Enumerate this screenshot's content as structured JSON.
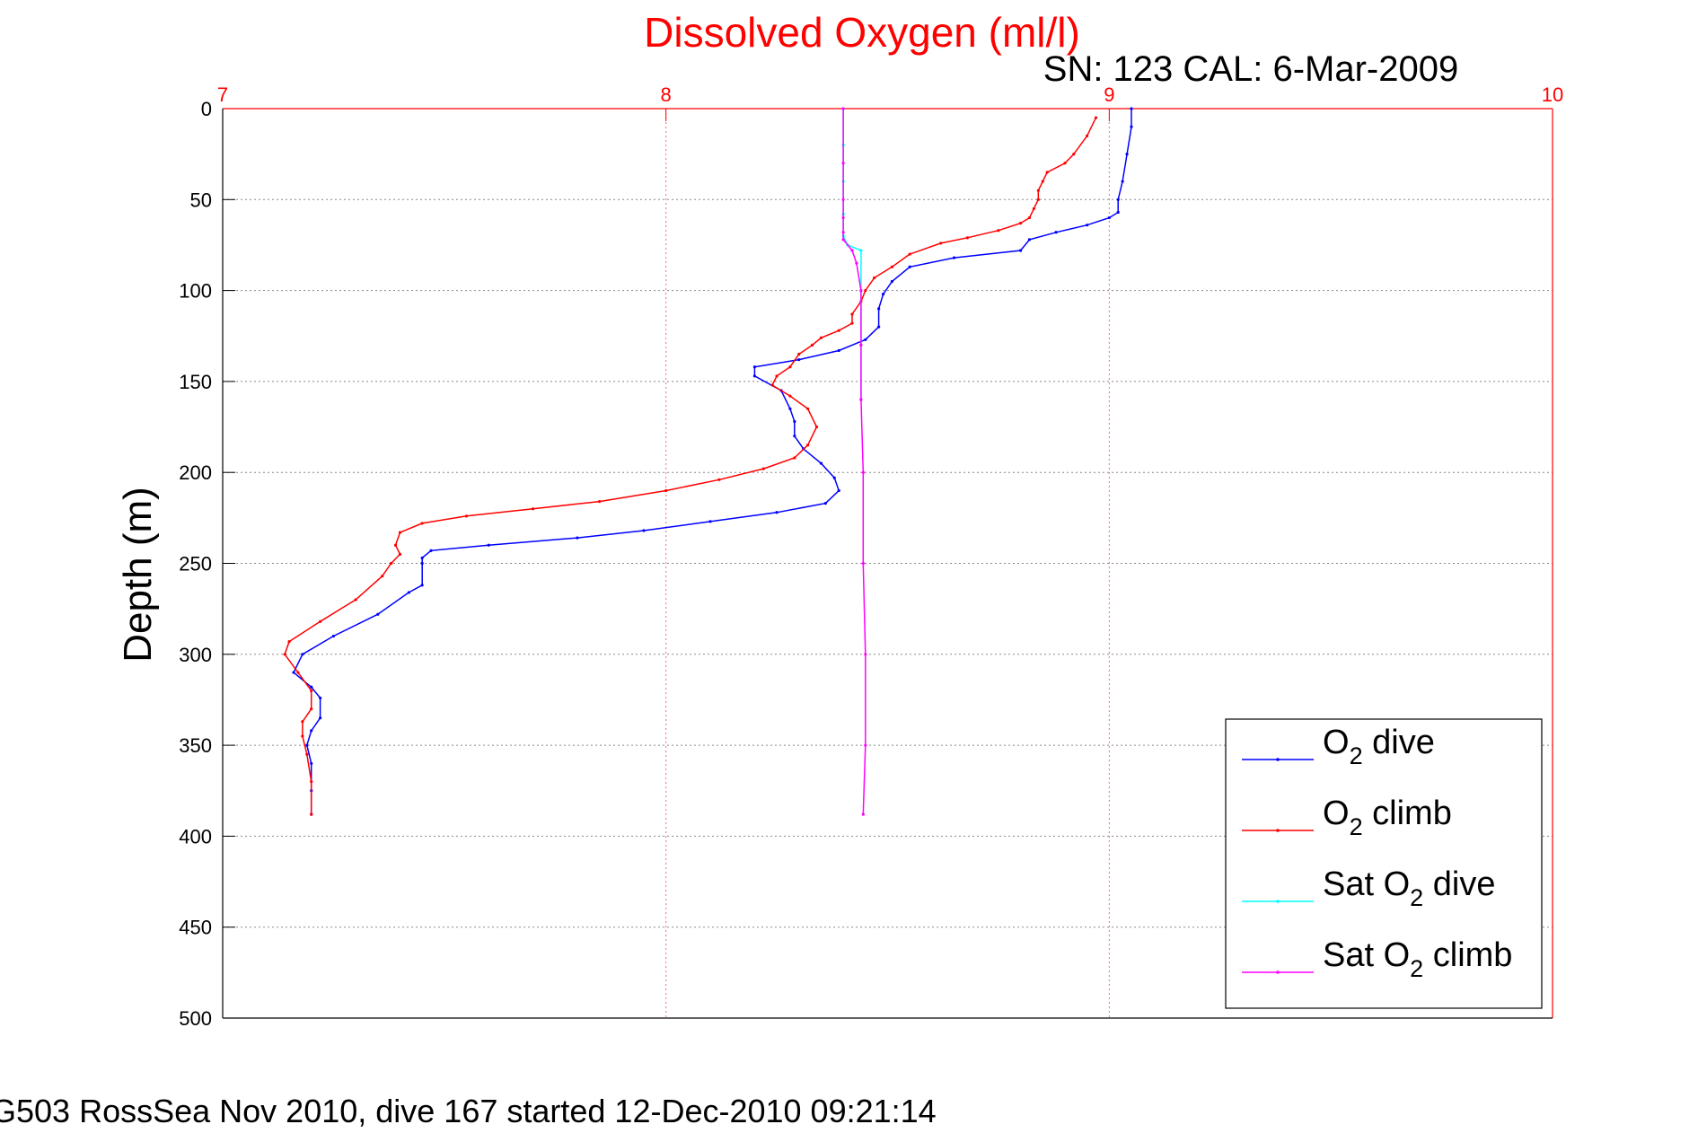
{
  "chart_data": {
    "type": "line",
    "title": "Dissolved Oxygen (ml/l)",
    "subtitle": "SN: 123  CAL: 6-Mar-2009",
    "ylabel": "Depth (m)",
    "footer": "G503 RossSea Nov 2010, dive 167 started 12-Dec-2010 09:21:14",
    "xlim": [
      7,
      10
    ],
    "ylim": [
      0,
      500
    ],
    "y_reversed": true,
    "x_axis_position": "top",
    "xticks": [
      "7",
      "8",
      "9",
      "10"
    ],
    "yticks": [
      "0",
      "50",
      "100",
      "150",
      "200",
      "250",
      "300",
      "350",
      "400",
      "450",
      "500"
    ],
    "grid": true,
    "legend_position": "bottom-right",
    "series": [
      {
        "key": "o2_dive",
        "legend": "dive",
        "color": "#0000ff",
        "points": [
          [
            9.05,
            0
          ],
          [
            9.05,
            10
          ],
          [
            9.04,
            25
          ],
          [
            9.03,
            40
          ],
          [
            9.02,
            50
          ],
          [
            9.02,
            57
          ],
          [
            9.0,
            60
          ],
          [
            8.95,
            64
          ],
          [
            8.88,
            68
          ],
          [
            8.82,
            72
          ],
          [
            8.8,
            78
          ],
          [
            8.65,
            82
          ],
          [
            8.55,
            87
          ],
          [
            8.51,
            95
          ],
          [
            8.49,
            102
          ],
          [
            8.48,
            110
          ],
          [
            8.48,
            120
          ],
          [
            8.45,
            127
          ],
          [
            8.39,
            133
          ],
          [
            8.3,
            138
          ],
          [
            8.2,
            142
          ],
          [
            8.2,
            147
          ],
          [
            8.26,
            155
          ],
          [
            8.28,
            165
          ],
          [
            8.29,
            172
          ],
          [
            8.29,
            180
          ],
          [
            8.31,
            187
          ],
          [
            8.35,
            195
          ],
          [
            8.38,
            203
          ],
          [
            8.39,
            210
          ],
          [
            8.36,
            217
          ],
          [
            8.25,
            222
          ],
          [
            8.1,
            227
          ],
          [
            7.95,
            232
          ],
          [
            7.8,
            236
          ],
          [
            7.6,
            240
          ],
          [
            7.47,
            243
          ],
          [
            7.45,
            247
          ],
          [
            7.45,
            250
          ],
          [
            7.45,
            262
          ],
          [
            7.42,
            266
          ],
          [
            7.35,
            278
          ],
          [
            7.25,
            290
          ],
          [
            7.18,
            300
          ],
          [
            7.16,
            310
          ],
          [
            7.2,
            318
          ],
          [
            7.22,
            324
          ],
          [
            7.22,
            335
          ],
          [
            7.2,
            342
          ],
          [
            7.19,
            350
          ],
          [
            7.2,
            360
          ],
          [
            7.2,
            375
          ],
          [
            7.2,
            388
          ]
        ]
      },
      {
        "key": "o2_climb",
        "legend": "climb",
        "color": "#ff0000",
        "points": [
          [
            8.97,
            5
          ],
          [
            8.95,
            15
          ],
          [
            8.92,
            25
          ],
          [
            8.9,
            30
          ],
          [
            8.86,
            35
          ],
          [
            8.85,
            40
          ],
          [
            8.84,
            45
          ],
          [
            8.84,
            50
          ],
          [
            8.83,
            55
          ],
          [
            8.82,
            60
          ],
          [
            8.8,
            63
          ],
          [
            8.75,
            67
          ],
          [
            8.68,
            71
          ],
          [
            8.62,
            74
          ],
          [
            8.55,
            80
          ],
          [
            8.51,
            87
          ],
          [
            8.47,
            93
          ],
          [
            8.45,
            100
          ],
          [
            8.44,
            106
          ],
          [
            8.42,
            113
          ],
          [
            8.42,
            118
          ],
          [
            8.39,
            122
          ],
          [
            8.35,
            126
          ],
          [
            8.33,
            130
          ],
          [
            8.3,
            135
          ],
          [
            8.28,
            142
          ],
          [
            8.25,
            147
          ],
          [
            8.24,
            152
          ],
          [
            8.28,
            158
          ],
          [
            8.32,
            165
          ],
          [
            8.34,
            175
          ],
          [
            8.32,
            185
          ],
          [
            8.29,
            192
          ],
          [
            8.22,
            198
          ],
          [
            8.12,
            204
          ],
          [
            8.0,
            210
          ],
          [
            7.85,
            216
          ],
          [
            7.7,
            220
          ],
          [
            7.55,
            224
          ],
          [
            7.45,
            228
          ],
          [
            7.4,
            233
          ],
          [
            7.39,
            240
          ],
          [
            7.4,
            245
          ],
          [
            7.38,
            250
          ],
          [
            7.36,
            257
          ],
          [
            7.3,
            270
          ],
          [
            7.22,
            282
          ],
          [
            7.15,
            293
          ],
          [
            7.14,
            300
          ],
          [
            7.17,
            310
          ],
          [
            7.2,
            320
          ],
          [
            7.2,
            330
          ],
          [
            7.18,
            337
          ],
          [
            7.18,
            345
          ],
          [
            7.19,
            355
          ],
          [
            7.2,
            370
          ],
          [
            7.2,
            388
          ]
        ]
      },
      {
        "key": "sat_o2_dive",
        "legend": "Sat",
        "legend_suffix": "dive",
        "color": "#00ffff",
        "points": [
          [
            8.4,
            0
          ],
          [
            8.4,
            20
          ],
          [
            8.4,
            40
          ],
          [
            8.4,
            58
          ],
          [
            8.4,
            70
          ],
          [
            8.41,
            75
          ],
          [
            8.44,
            78
          ],
          [
            8.44,
            100
          ],
          [
            8.44,
            130
          ],
          [
            8.44,
            160
          ]
        ]
      },
      {
        "key": "sat_o2_climb",
        "legend": "Sat",
        "legend_suffix": "climb",
        "color": "#ff00ff",
        "points": [
          [
            8.4,
            0
          ],
          [
            8.4,
            30
          ],
          [
            8.4,
            50
          ],
          [
            8.4,
            60
          ],
          [
            8.4,
            68
          ],
          [
            8.4,
            72
          ],
          [
            8.42,
            78
          ],
          [
            8.43,
            85
          ],
          [
            8.44,
            100
          ],
          [
            8.44,
            130
          ],
          [
            8.44,
            160
          ],
          [
            8.445,
            200
          ],
          [
            8.445,
            250
          ],
          [
            8.45,
            300
          ],
          [
            8.45,
            350
          ],
          [
            8.445,
            388
          ]
        ]
      }
    ],
    "legend_o_label": "O",
    "legend_subscript": "2"
  }
}
